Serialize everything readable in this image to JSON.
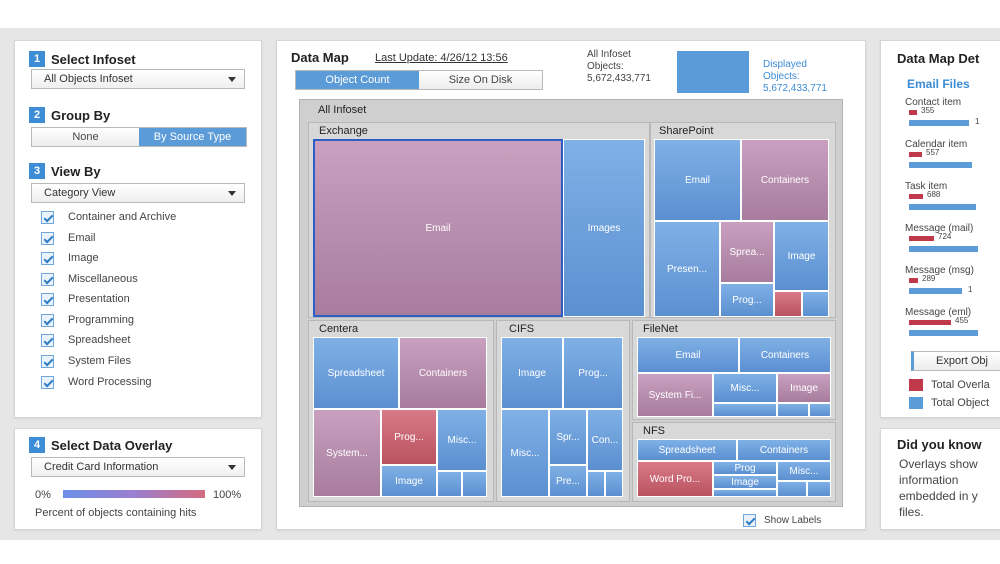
{
  "left": {
    "select_infoset": {
      "num": "1",
      "title": "Select Infoset",
      "value": "All Objects Infoset"
    },
    "group_by": {
      "num": "2",
      "title": "Group By",
      "options": [
        "None",
        "By Source Type"
      ],
      "selected": "By Source Type"
    },
    "view_by": {
      "num": "3",
      "title": "View By",
      "value": "Category View",
      "categories": [
        "Container and Archive",
        "Email",
        "Image",
        "Miscellaneous",
        "Presentation",
        "Programming",
        "Spreadsheet",
        "System Files",
        "Word Processing"
      ]
    },
    "overlay": {
      "num": "4",
      "title": "Select Data Overlay",
      "value": "Credit Card Information",
      "min": "0%",
      "max": "100%",
      "caption": "Percent of objects containing hits"
    }
  },
  "center": {
    "title": "Data Map",
    "last_update": "Last Update: 4/26/12 13:56",
    "tabs": [
      "Object Count",
      "Size On Disk"
    ],
    "selected_tab": "Object Count",
    "all_infoset_label": "All Infoset Objects:",
    "all_infoset_count": "5,672,433,771",
    "displayed_label": "Displayed Objects:",
    "displayed_count": "5,672,433,771",
    "tree_root": "All Infoset",
    "groups": {
      "exchange": "Exchange",
      "sharepoint": "SharePoint",
      "centera": "Centera",
      "cifs": "CIFS",
      "filenet": "FileNet",
      "nfs": "NFS"
    },
    "tiles": {
      "email": "Email",
      "images": "Images",
      "sp_email": "Email",
      "sp_containers": "Containers",
      "sp_presen": "Presen...",
      "sp_sprea": "Sprea...",
      "sp_image": "Image",
      "sp_prog": "Prog...",
      "ce_spreadsheet": "Spreadsheet",
      "ce_containers": "Containers",
      "ce_system": "System...",
      "ce_prog": "Prog...",
      "ce_misc": "Misc...",
      "ce_image": "Image",
      "ci_image": "Image",
      "ci_prog": "Prog...",
      "ci_misc": "Misc...",
      "ci_spr": "Spr...",
      "ci_con": "Con...",
      "ci_pre": "Pre...",
      "fn_email": "Email",
      "fn_containers": "Containers",
      "fn_system": "System Fi...",
      "fn_misc": "Misc...",
      "fn_image": "Image",
      "nfs_spreadsheet": "Spreadsheet",
      "nfs_containers": "Containers",
      "nfs_word": "Word Pro...",
      "nfs_prog": "Prog",
      "nfs_misc": "Misc...",
      "nfs_image": "Image"
    },
    "show_labels": "Show Labels"
  },
  "right": {
    "title": "Data Map Det",
    "section": "Email Files",
    "items": [
      {
        "label": "Contact item",
        "hits": "355",
        "total": "1",
        "hit_frac": 0.12,
        "total_frac": 0.85
      },
      {
        "label": "Calendar item",
        "hits": "557",
        "total": "",
        "hit_frac": 0.18,
        "total_frac": 0.9
      },
      {
        "label": "Task item",
        "hits": "688",
        "total": "",
        "hit_frac": 0.2,
        "total_frac": 0.95
      },
      {
        "label": "Message (mail)",
        "hits": "724",
        "total": "",
        "hit_frac": 0.36,
        "total_frac": 0.98
      },
      {
        "label": "Message (msg)",
        "hits": "289",
        "total": "1",
        "hit_frac": 0.13,
        "total_frac": 0.75
      },
      {
        "label": "Message (eml)",
        "hits": "455",
        "total": "",
        "hit_frac": 0.6,
        "total_frac": 0.98
      }
    ],
    "export": "Export Obj",
    "legend_overlay": "Total Overla",
    "legend_objects": "Total Object",
    "did_you_know_title": "Did you know",
    "did_you_know_text": [
      "Overlays show",
      "information",
      "embedded in y",
      "files."
    ],
    "colors": {
      "overlay": "#c0394b",
      "objects": "#5b9bd8"
    }
  }
}
